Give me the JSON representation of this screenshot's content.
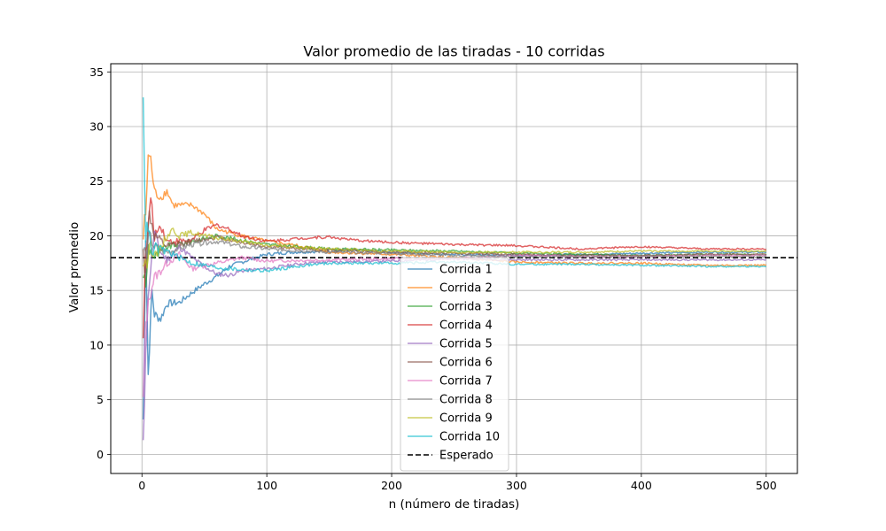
{
  "chart_data": {
    "type": "line",
    "title": "Valor promedio de las tiradas - 10 corridas",
    "xlabel": "n (número de tiradas)",
    "ylabel": "Valor promedio",
    "xlim": [
      -25,
      525
    ],
    "ylim": [
      -1.75,
      35.75
    ],
    "xticks": [
      0,
      100,
      200,
      300,
      400,
      500
    ],
    "yticks": [
      0,
      5,
      10,
      15,
      20,
      25,
      30,
      35
    ],
    "grid": true,
    "legend_position": "center-bottom",
    "reference_line": {
      "name": "Esperado",
      "y": 18,
      "color": "#000000",
      "style": "dashed"
    },
    "series": [
      {
        "name": "Corrida 1",
        "color": "#1f77b4",
        "points": [
          [
            1,
            3
          ],
          [
            3,
            20
          ],
          [
            5,
            7.3
          ],
          [
            8,
            15
          ],
          [
            10,
            12.8
          ],
          [
            15,
            12.4
          ],
          [
            20,
            13.8
          ],
          [
            30,
            13.9
          ],
          [
            40,
            14.8
          ],
          [
            50,
            15.6
          ],
          [
            60,
            16.3
          ],
          [
            70,
            17.2
          ],
          [
            80,
            17.6
          ],
          [
            100,
            18.3
          ],
          [
            120,
            18.5
          ],
          [
            150,
            18.6
          ],
          [
            170,
            18.7
          ],
          [
            200,
            18.5
          ],
          [
            250,
            18.3
          ],
          [
            300,
            18.2
          ],
          [
            350,
            18.3
          ],
          [
            400,
            18.4
          ],
          [
            450,
            18.5
          ],
          [
            500,
            18.5
          ]
        ]
      },
      {
        "name": "Corrida 2",
        "color": "#ff7f0e",
        "points": [
          [
            1,
            20
          ],
          [
            3,
            22
          ],
          [
            5,
            27.3
          ],
          [
            7,
            27
          ],
          [
            10,
            24
          ],
          [
            15,
            23.5
          ],
          [
            20,
            24.1
          ],
          [
            25,
            22.8
          ],
          [
            40,
            22.8
          ],
          [
            50,
            22
          ],
          [
            60,
            20.6
          ],
          [
            80,
            20
          ],
          [
            100,
            19.5
          ],
          [
            130,
            19
          ],
          [
            150,
            18.5
          ],
          [
            200,
            18.3
          ],
          [
            250,
            18
          ],
          [
            300,
            17.6
          ],
          [
            350,
            17.5
          ],
          [
            400,
            17.5
          ],
          [
            450,
            17.3
          ],
          [
            500,
            17.3
          ]
        ]
      },
      {
        "name": "Corrida 3",
        "color": "#2ca02c",
        "points": [
          [
            1,
            17
          ],
          [
            3,
            15
          ],
          [
            5,
            19
          ],
          [
            10,
            18
          ],
          [
            20,
            19
          ],
          [
            40,
            19.5
          ],
          [
            60,
            20
          ],
          [
            80,
            19.6
          ],
          [
            100,
            19.2
          ],
          [
            150,
            18.8
          ],
          [
            200,
            18.7
          ],
          [
            250,
            18.6
          ],
          [
            300,
            18.4
          ],
          [
            350,
            18.3
          ],
          [
            400,
            18.2
          ],
          [
            450,
            18.3
          ],
          [
            500,
            18.3
          ]
        ]
      },
      {
        "name": "Corrida 4",
        "color": "#d62728",
        "points": [
          [
            1,
            12
          ],
          [
            3,
            18
          ],
          [
            7,
            23.5
          ],
          [
            10,
            20
          ],
          [
            15,
            21
          ],
          [
            20,
            19.5
          ],
          [
            30,
            19.5
          ],
          [
            40,
            19.6
          ],
          [
            50,
            20.5
          ],
          [
            60,
            21
          ],
          [
            70,
            20.6
          ],
          [
            80,
            20
          ],
          [
            100,
            19.5
          ],
          [
            130,
            19.8
          ],
          [
            150,
            19.9
          ],
          [
            170,
            19.6
          ],
          [
            200,
            19.4
          ],
          [
            250,
            19.2
          ],
          [
            300,
            19.1
          ],
          [
            350,
            18.8
          ],
          [
            400,
            19
          ],
          [
            450,
            18.8
          ],
          [
            500,
            18.8
          ]
        ]
      },
      {
        "name": "Corrida 5",
        "color": "#9467bd",
        "points": [
          [
            1,
            0
          ],
          [
            3,
            10
          ],
          [
            6,
            16
          ],
          [
            10,
            20.3
          ],
          [
            15,
            18.5
          ],
          [
            20,
            17.8
          ],
          [
            30,
            19
          ],
          [
            40,
            18
          ],
          [
            50,
            17.2
          ],
          [
            60,
            16.5
          ],
          [
            70,
            16.4
          ],
          [
            80,
            16.8
          ],
          [
            100,
            17
          ],
          [
            130,
            17.5
          ],
          [
            150,
            17.6
          ],
          [
            200,
            17.7
          ],
          [
            250,
            17.9
          ],
          [
            300,
            17.8
          ],
          [
            350,
            17.8
          ],
          [
            400,
            17.8
          ],
          [
            450,
            17.8
          ],
          [
            500,
            17.8
          ]
        ]
      },
      {
        "name": "Corrida 6",
        "color": "#8c564b",
        "points": [
          [
            1,
            18
          ],
          [
            3,
            17
          ],
          [
            6,
            22
          ],
          [
            10,
            20
          ],
          [
            20,
            19
          ],
          [
            40,
            19.5
          ],
          [
            60,
            19.9
          ],
          [
            80,
            19.4
          ],
          [
            100,
            19
          ],
          [
            150,
            18.7
          ],
          [
            200,
            18.5
          ],
          [
            250,
            18.4
          ],
          [
            300,
            18.3
          ],
          [
            350,
            18.2
          ],
          [
            400,
            18.2
          ],
          [
            450,
            18.3
          ],
          [
            500,
            18.3
          ]
        ]
      },
      {
        "name": "Corrida 7",
        "color": "#e377c2",
        "points": [
          [
            1,
            5
          ],
          [
            3,
            12
          ],
          [
            6,
            14.5
          ],
          [
            10,
            16.2
          ],
          [
            15,
            16.8
          ],
          [
            20,
            17.5
          ],
          [
            30,
            18.3
          ],
          [
            40,
            17
          ],
          [
            50,
            17.3
          ],
          [
            60,
            17.5
          ],
          [
            80,
            18
          ],
          [
            100,
            17.7
          ],
          [
            150,
            17.8
          ],
          [
            200,
            17.9
          ],
          [
            250,
            17.9
          ],
          [
            300,
            18.2
          ],
          [
            350,
            18.1
          ],
          [
            400,
            18.1
          ],
          [
            450,
            18.2
          ],
          [
            500,
            18.2
          ]
        ]
      },
      {
        "name": "Corrida 8",
        "color": "#7f7f7f",
        "points": [
          [
            1,
            19
          ],
          [
            3,
            18
          ],
          [
            6,
            20
          ],
          [
            10,
            19
          ],
          [
            20,
            18.5
          ],
          [
            40,
            19.2
          ],
          [
            60,
            19.5
          ],
          [
            80,
            19
          ],
          [
            100,
            18.8
          ],
          [
            150,
            18.5
          ],
          [
            200,
            18.4
          ],
          [
            250,
            18.2
          ],
          [
            300,
            18.1
          ],
          [
            350,
            18.1
          ],
          [
            400,
            18.1
          ],
          [
            450,
            18.1
          ],
          [
            500,
            18.1
          ]
        ]
      },
      {
        "name": "Corrida 9",
        "color": "#bcbd22",
        "points": [
          [
            1,
            18
          ],
          [
            3,
            17
          ],
          [
            6,
            19.5
          ],
          [
            10,
            18
          ],
          [
            15,
            19
          ],
          [
            20,
            20
          ],
          [
            25,
            20.6
          ],
          [
            30,
            20
          ],
          [
            40,
            20.3
          ],
          [
            50,
            20
          ],
          [
            60,
            19.8
          ],
          [
            80,
            19.5
          ],
          [
            100,
            19.1
          ],
          [
            150,
            18.8
          ],
          [
            200,
            18.6
          ],
          [
            250,
            18.5
          ],
          [
            300,
            18.5
          ],
          [
            350,
            18.5
          ],
          [
            400,
            18.6
          ],
          [
            450,
            18.6
          ],
          [
            500,
            18.6
          ]
        ]
      },
      {
        "name": "Corrida 10",
        "color": "#17becf",
        "points": [
          [
            1,
            34
          ],
          [
            2,
            26
          ],
          [
            3,
            20
          ],
          [
            5,
            21
          ],
          [
            8,
            18
          ],
          [
            10,
            19
          ],
          [
            15,
            18.7
          ],
          [
            20,
            18.6
          ],
          [
            30,
            18
          ],
          [
            40,
            17.5
          ],
          [
            50,
            17.3
          ],
          [
            60,
            17.1
          ],
          [
            80,
            16.9
          ],
          [
            100,
            16.8
          ],
          [
            130,
            17.3
          ],
          [
            150,
            17.5
          ],
          [
            200,
            17.5
          ],
          [
            250,
            17.6
          ],
          [
            300,
            17.4
          ],
          [
            350,
            17.4
          ],
          [
            400,
            17.3
          ],
          [
            450,
            17.2
          ],
          [
            500,
            17.2
          ]
        ]
      }
    ]
  }
}
